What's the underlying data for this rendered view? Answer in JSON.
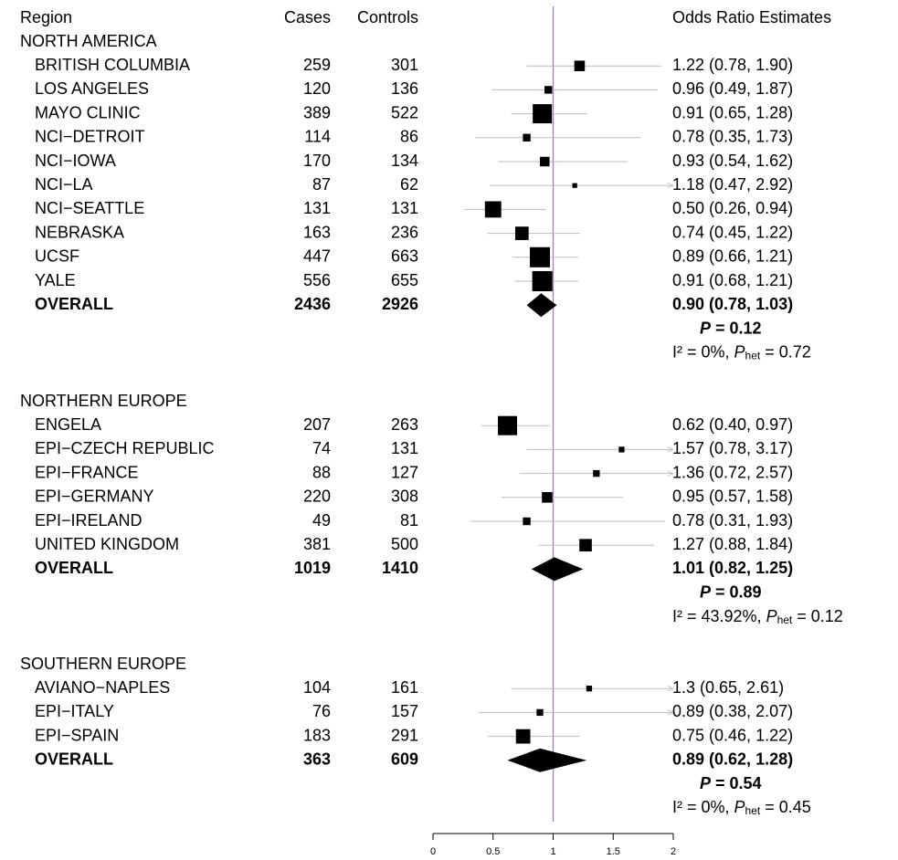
{
  "chart_data": {
    "type": "forest",
    "headers": {
      "region": "Region",
      "cases": "Cases",
      "controls": "Controls",
      "estimates": "Odds Ratio Estimates"
    },
    "xlim": [
      0,
      2
    ],
    "ticks": [
      "0",
      "0.5",
      "1",
      "1.5",
      "2"
    ],
    "tick_values": [
      0,
      0.5,
      1,
      1.5,
      2
    ],
    "reference_line": 1,
    "reference_color": "#b967e6",
    "groups": [
      {
        "name": "NORTH AMERICA",
        "studies": [
          {
            "label": "BRITISH COLUMBIA",
            "cases": "259",
            "controls": "301",
            "or": 1.22,
            "lo": 0.78,
            "hi": 1.9,
            "text": "1.22 (0.78, 1.90)",
            "weight": 0.55
          },
          {
            "label": "LOS ANGELES",
            "cases": "120",
            "controls": "136",
            "or": 0.96,
            "lo": 0.49,
            "hi": 1.87,
            "text": "0.96 (0.49, 1.87)",
            "weight": 0.4
          },
          {
            "label": "MAYO CLINIC",
            "cases": "389",
            "controls": "522",
            "or": 0.91,
            "lo": 0.65,
            "hi": 1.28,
            "text": "0.91 (0.65, 1.28)",
            "weight": 1.0
          },
          {
            "label": "NCI−DETROIT",
            "cases": "114",
            "controls": "86",
            "or": 0.78,
            "lo": 0.35,
            "hi": 1.73,
            "text": "0.78 (0.35, 1.73)",
            "weight": 0.4
          },
          {
            "label": "NCI−IOWA",
            "cases": "170",
            "controls": "134",
            "or": 0.93,
            "lo": 0.54,
            "hi": 1.62,
            "text": "0.93 (0.54, 1.62)",
            "weight": 0.5
          },
          {
            "label": "NCI−LA",
            "cases": "87",
            "controls": "62",
            "or": 1.18,
            "lo": 0.47,
            "hi": 2.92,
            "text": "1.18 (0.47, 2.92)",
            "weight": 0.25
          },
          {
            "label": "NCI−SEATTLE",
            "cases": "131",
            "controls": "131",
            "or": 0.5,
            "lo": 0.26,
            "hi": 0.94,
            "text": "0.50 (0.26, 0.94)",
            "weight": 0.85
          },
          {
            "label": "NEBRASKA",
            "cases": "163",
            "controls": "236",
            "or": 0.74,
            "lo": 0.45,
            "hi": 1.22,
            "text": "0.74 (0.45, 1.22)",
            "weight": 0.7
          },
          {
            "label": "UCSF",
            "cases": "447",
            "controls": "663",
            "or": 0.89,
            "lo": 0.66,
            "hi": 1.21,
            "text": "0.89 (0.66, 1.21)",
            "weight": 1.05
          },
          {
            "label": "YALE",
            "cases": "556",
            "controls": "655",
            "or": 0.91,
            "lo": 0.68,
            "hi": 1.21,
            "text": "0.91 (0.68, 1.21)",
            "weight": 1.05
          }
        ],
        "overall": {
          "label": "OVERALL",
          "cases": "2436",
          "controls": "2926",
          "or": 0.9,
          "lo": 0.78,
          "hi": 1.03,
          "text": "0.90 (0.78, 1.03)"
        },
        "p_label": "P",
        "p_value": " = 0.12",
        "i2_text": "I² = 0%, ",
        "phet_p": "P",
        "phet_sub": "het",
        "phet_value": " = 0.72"
      },
      {
        "name": "NORTHERN EUROPE",
        "studies": [
          {
            "label": "ENGELA",
            "cases": "207",
            "controls": "263",
            "or": 0.62,
            "lo": 0.4,
            "hi": 0.97,
            "text": "0.62 (0.40, 0.97)",
            "weight": 1.0
          },
          {
            "label": "EPI−CZECH REPUBLIC",
            "cases": "74",
            "controls": "131",
            "or": 1.57,
            "lo": 0.78,
            "hi": 3.17,
            "text": "1.57 (0.78, 3.17)",
            "weight": 0.3
          },
          {
            "label": "EPI−FRANCE",
            "cases": "88",
            "controls": "127",
            "or": 1.36,
            "lo": 0.72,
            "hi": 2.57,
            "text": "1.36 (0.72, 2.57)",
            "weight": 0.35
          },
          {
            "label": "EPI−GERMANY",
            "cases": "220",
            "controls": "308",
            "or": 0.95,
            "lo": 0.57,
            "hi": 1.58,
            "text": "0.95 (0.57, 1.58)",
            "weight": 0.55
          },
          {
            "label": "EPI−IRELAND",
            "cases": "49",
            "controls": "81",
            "or": 0.78,
            "lo": 0.31,
            "hi": 1.93,
            "text": "0.78 (0.31, 1.93)",
            "weight": 0.4
          },
          {
            "label": "UNITED KINGDOM",
            "cases": "381",
            "controls": "500",
            "or": 1.27,
            "lo": 0.88,
            "hi": 1.84,
            "text": "1.27 (0.88, 1.84)",
            "weight": 0.65
          }
        ],
        "overall": {
          "label": "OVERALL",
          "cases": "1019",
          "controls": "1410",
          "or": 1.01,
          "lo": 0.82,
          "hi": 1.25,
          "text": "1.01 (0.82, 1.25)"
        },
        "p_label": "P",
        "p_value": " = 0.89",
        "i2_text": "I² = 43.92%, ",
        "phet_p": "P",
        "phet_sub": "het",
        "phet_value": " = 0.12"
      },
      {
        "name": "SOUTHERN EUROPE",
        "studies": [
          {
            "label": "AVIANO−NAPLES",
            "cases": "104",
            "controls": "161",
            "or": 1.3,
            "lo": 0.65,
            "hi": 2.61,
            "text": "1.3 (0.65, 2.61)",
            "weight": 0.3
          },
          {
            "label": "EPI−ITALY",
            "cases": "76",
            "controls": "157",
            "or": 0.89,
            "lo": 0.38,
            "hi": 2.07,
            "text": "0.89 (0.38, 2.07)",
            "weight": 0.35
          },
          {
            "label": "EPI−SPAIN",
            "cases": "183",
            "controls": "291",
            "or": 0.75,
            "lo": 0.46,
            "hi": 1.22,
            "text": "0.75 (0.46, 1.22)",
            "weight": 0.75
          }
        ],
        "overall": {
          "label": "OVERALL",
          "cases": "363",
          "controls": "609",
          "or": 0.89,
          "lo": 0.62,
          "hi": 1.28,
          "text": "0.89 (0.62, 1.28)"
        },
        "p_label": "P",
        "p_value": " = 0.54",
        "i2_text": "I² = 0%, ",
        "phet_p": "P",
        "phet_sub": "het",
        "phet_value": " = 0.45"
      }
    ]
  }
}
